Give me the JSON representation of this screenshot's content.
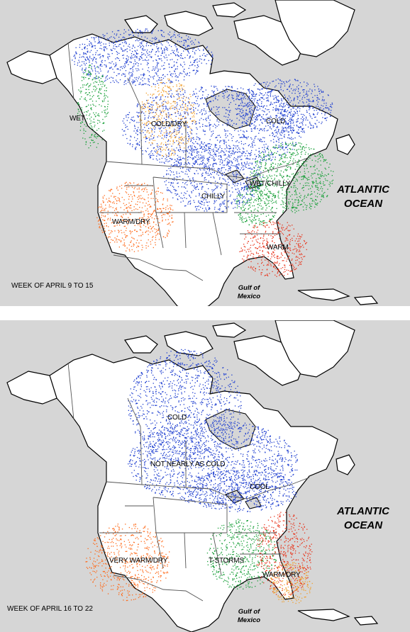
{
  "colors": {
    "sea": "#d6d6d6",
    "land": "#ffffff",
    "cold": "#1f3fd0",
    "warm": "#ff6a1a",
    "dry": "#f0a030",
    "wet": "#1aa03a",
    "red": "#e8341c"
  },
  "panels": [
    {
      "week_label": "WEEK OF APRIL 9 TO 15",
      "labels": {
        "wet": "WET",
        "cold_dry": "COLD/DRY",
        "cold": "COLD",
        "wet_chilly": "WET/CHILLY",
        "chilly": "CHILLY",
        "warm_dry": "WARM/DRY",
        "warm": "WARM"
      },
      "ocean": {
        "line1": "ATLANTIC",
        "line2": "OCEAN"
      },
      "gulf": {
        "line1": "Gulf of",
        "line2": "Mexico"
      }
    },
    {
      "week_label": "WEEK OF APRIL 16 TO 22",
      "labels": {
        "cold": "COLD",
        "not_nearly": "NOT NEARLY AS COLD",
        "cool": "COOL",
        "very_warm_dry": "VERY WARM/DRY",
        "tstorms": "T-STORMS",
        "warm_dry": "WARM/DRY"
      },
      "ocean": {
        "line1": "ATLANTIC",
        "line2": "OCEAN"
      },
      "gulf": {
        "line1": "Gulf of",
        "line2": "Mexico"
      }
    }
  ]
}
